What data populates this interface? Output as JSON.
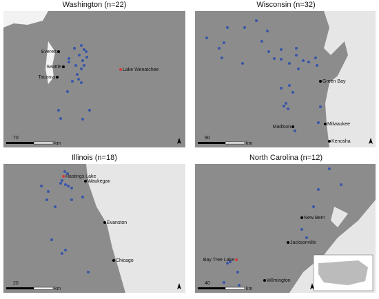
{
  "panels": [
    {
      "title": "Washington (n=22)",
      "scale_value": 70,
      "scale_unit": "km",
      "places": [
        "Everett",
        "Seattle",
        "Tacoma",
        "Lake Wenatchee"
      ]
    },
    {
      "title": "Wisconsin (n=32)",
      "scale_value": 90,
      "scale_unit": "km",
      "places": [
        "Green Bay",
        "Milwaukee",
        "Madison",
        "Kenosha"
      ]
    },
    {
      "title": "Illinois (n=18)",
      "scale_value": 20,
      "scale_unit": "km",
      "places": [
        "Hastings Lake",
        "Waukegan",
        "Evanston",
        "Chicago"
      ]
    },
    {
      "title": "North Carolina (n=12)",
      "scale_value": 40,
      "scale_unit": "km",
      "places": [
        "New Bern",
        "Jacksonville",
        "Bay Tree Lake",
        "Wilmington"
      ]
    }
  ]
}
